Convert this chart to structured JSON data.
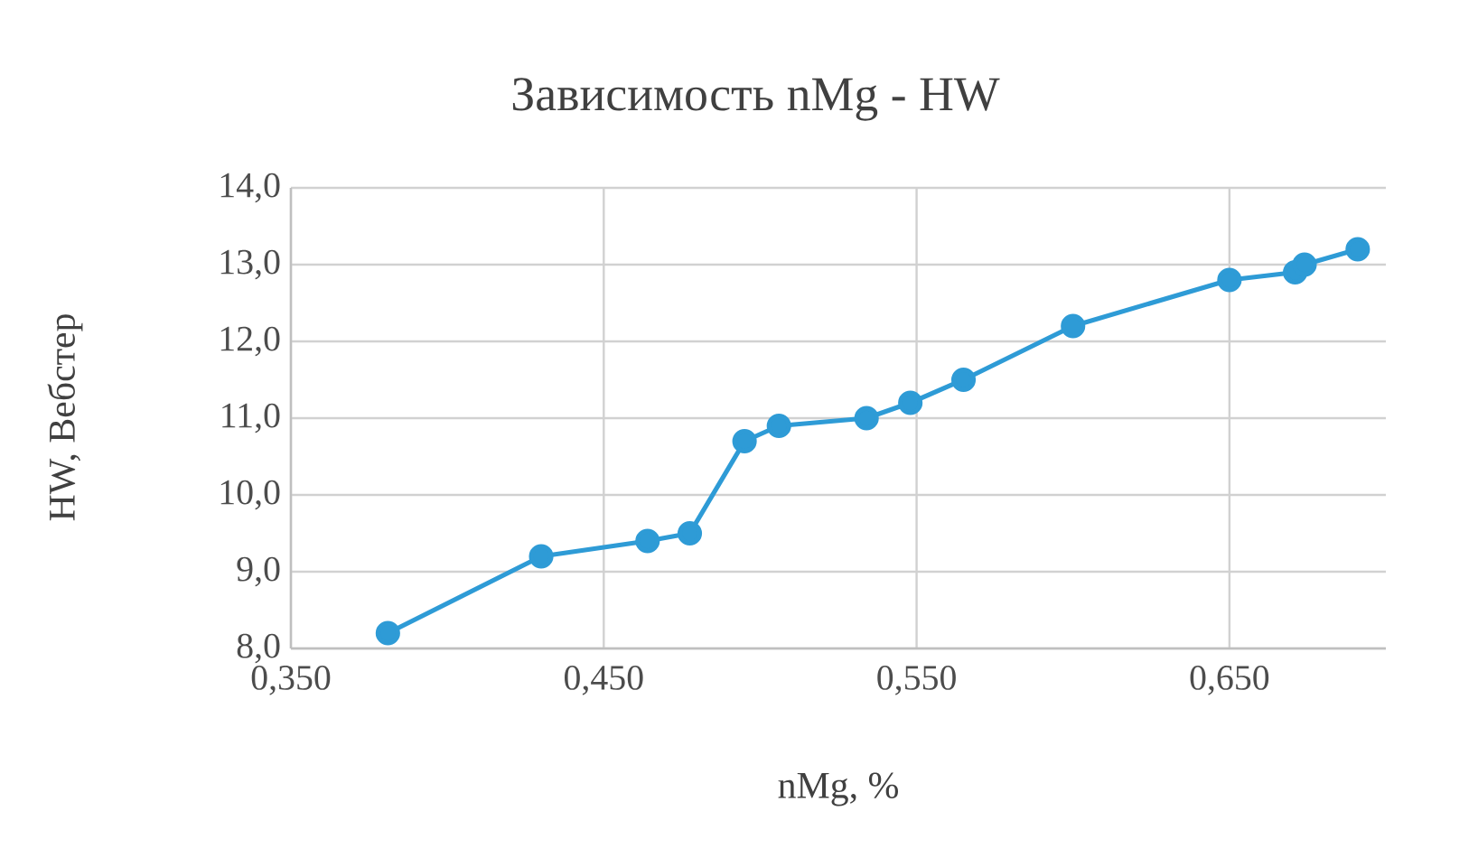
{
  "chart_data": {
    "type": "line",
    "title": "Зависимость nMg - HW",
    "xlabel": "nMg, %",
    "ylabel": "HW,  Вебстер",
    "x": [
      0.381,
      0.43,
      0.464,
      0.4775,
      0.495,
      0.506,
      0.534,
      0.548,
      0.565,
      0.6,
      0.65,
      0.671,
      0.674,
      0.691
    ],
    "series": [
      {
        "color": "#2e9bd6",
        "values": [
          8.2,
          9.2,
          9.4,
          9.5,
          10.7,
          10.9,
          11.0,
          11.2,
          11.5,
          12.2,
          12.8,
          12.9,
          13.0,
          13.2
        ]
      }
    ],
    "xlim": [
      0.35,
      0.7
    ],
    "ylim": [
      8.0,
      14.0
    ],
    "xticks": [
      {
        "value": 0.35,
        "label": "0,350"
      },
      {
        "value": 0.45,
        "label": "0,450"
      },
      {
        "value": 0.55,
        "label": "0,550"
      },
      {
        "value": 0.65,
        "label": "0,650"
      }
    ],
    "yticks": [
      {
        "value": 8,
        "label": "8,0"
      },
      {
        "value": 9,
        "label": "9,0"
      },
      {
        "value": 10,
        "label": "10,0"
      },
      {
        "value": 11,
        "label": "11,0"
      },
      {
        "value": 12,
        "label": "12,0"
      },
      {
        "value": 13,
        "label": "13,0"
      },
      {
        "value": 14,
        "label": "14,0"
      }
    ],
    "grid": true,
    "marker": "circle",
    "line_style": "solid"
  }
}
